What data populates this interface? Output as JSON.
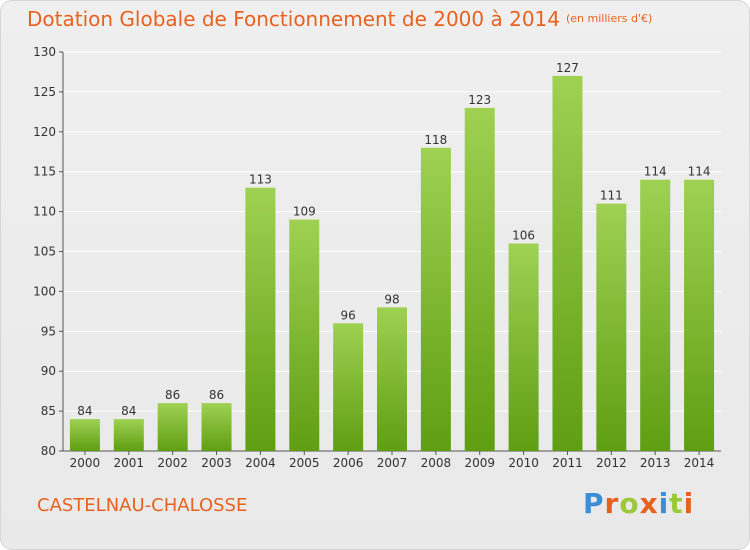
{
  "chart_data": {
    "type": "bar",
    "title": "Dotation Globale de Fonctionnement de 2000 à 2014",
    "subtitle": "(en milliers d'€)",
    "categories": [
      "2000",
      "2001",
      "2002",
      "2003",
      "2004",
      "2005",
      "2006",
      "2007",
      "2008",
      "2009",
      "2010",
      "2011",
      "2012",
      "2013",
      "2014"
    ],
    "values": [
      84,
      84,
      86,
      86,
      113,
      109,
      96,
      98,
      118,
      123,
      106,
      127,
      111,
      114,
      114
    ],
    "ylim": [
      80,
      130
    ],
    "yticks": [
      80,
      85,
      90,
      95,
      100,
      105,
      110,
      115,
      120,
      125,
      130
    ],
    "grid": true,
    "colors": {
      "bar_top": "#9fd152",
      "bar_bottom": "#5f9e12",
      "label": "#333333",
      "grid": "#ffffff"
    }
  },
  "footer": {
    "city": "CASTELNAU-CHALOSSE",
    "logo": [
      "P",
      "r",
      "o",
      "x",
      "i",
      "t",
      "i"
    ],
    "logo_colors": [
      "#3a8fd6",
      "#e8621f",
      "#9bc93a",
      "#e8621f",
      "#3a8fd6",
      "#9bc93a",
      "#e8621f"
    ]
  }
}
